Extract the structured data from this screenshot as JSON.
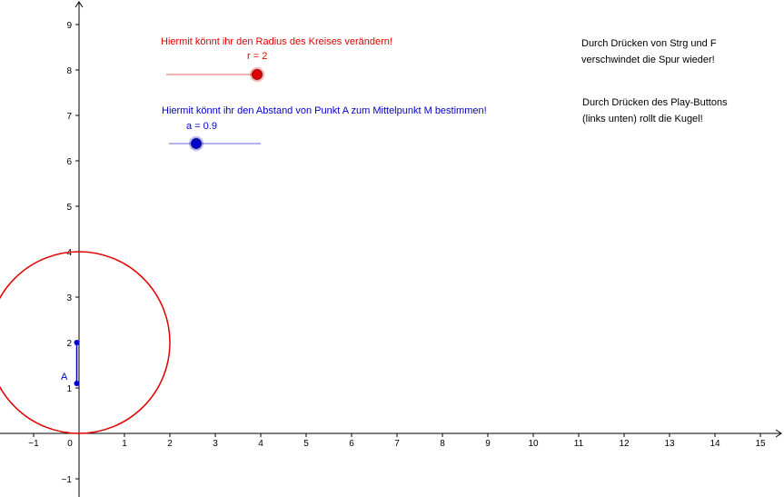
{
  "coordinate_system": {
    "x_ticks": [
      -1,
      0,
      1,
      2,
      3,
      4,
      5,
      6,
      7,
      8,
      9,
      10,
      11,
      12,
      13,
      14,
      15
    ],
    "y_ticks": [
      -1,
      1,
      2,
      3,
      4,
      5,
      6,
      7,
      8,
      9
    ],
    "x_tick_labels": [
      "−1",
      "0",
      "1",
      "2",
      "3",
      "4",
      "5",
      "6",
      "7",
      "8",
      "9",
      "10",
      "11",
      "12",
      "13",
      "14",
      "15"
    ],
    "y_tick_labels": [
      "−1",
      "1",
      "2",
      "3",
      "4",
      "5",
      "6",
      "7",
      "8",
      "9"
    ],
    "axis_color": "#000000"
  },
  "radius_slider": {
    "caption": "Hiermit könnt ihr den Radius des Kreises verändern!",
    "value_label": "r = 2",
    "value": 2,
    "color": "#e00000"
  },
  "distance_slider": {
    "caption": "Hiermit könnt ihr den Abstand von Punkt A zum Mittelpunkt M bestimmen!",
    "value_label": "a = 0.9",
    "value": 0.9,
    "color": "#0000cc"
  },
  "circle": {
    "center": [
      0,
      2
    ],
    "radius": 2,
    "color": "#e00000"
  },
  "point_a": {
    "label": "A",
    "coords": [
      -0.05,
      1.1
    ],
    "color": "#0000cc"
  },
  "point_m": {
    "coords": [
      -0.05,
      2
    ],
    "color": "#0000cc"
  },
  "hints": {
    "clear_trace_line1": "Durch Drücken von Strg und F",
    "clear_trace_line2": "verschwindet die Spur wieder!",
    "play_line1": "Durch Drücken des Play-Buttons",
    "play_line2": "(links unten) rollt die Kugel!"
  }
}
